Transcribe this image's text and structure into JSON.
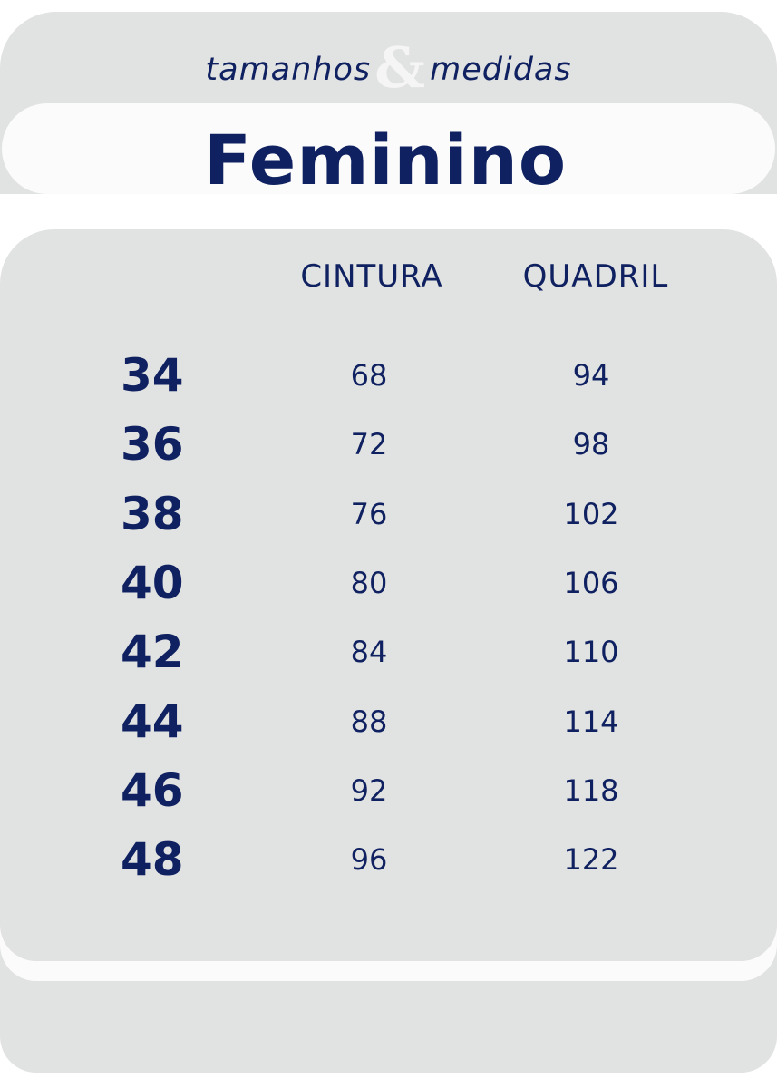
{
  "header": {
    "subtitle_left": "tamanhos",
    "subtitle_amp": "&",
    "subtitle_right": "medidas",
    "title": "Feminino"
  },
  "table": {
    "columns": [
      "CINTURA",
      "QUADRIL"
    ],
    "rows": [
      {
        "size": "34",
        "cintura": "68",
        "quadril": "94"
      },
      {
        "size": "36",
        "cintura": "72",
        "quadril": "98"
      },
      {
        "size": "38",
        "cintura": "76",
        "quadril": "102"
      },
      {
        "size": "40",
        "cintura": "80",
        "quadril": "106"
      },
      {
        "size": "42",
        "cintura": "84",
        "quadril": "110"
      },
      {
        "size": "44",
        "cintura": "88",
        "quadril": "114"
      },
      {
        "size": "46",
        "cintura": "92",
        "quadril": "118"
      },
      {
        "size": "48",
        "cintura": "96",
        "quadril": "122"
      }
    ]
  },
  "colors": {
    "text": "#0f2160",
    "panel": "#e1e2e2",
    "band": "#fbfbfb"
  }
}
